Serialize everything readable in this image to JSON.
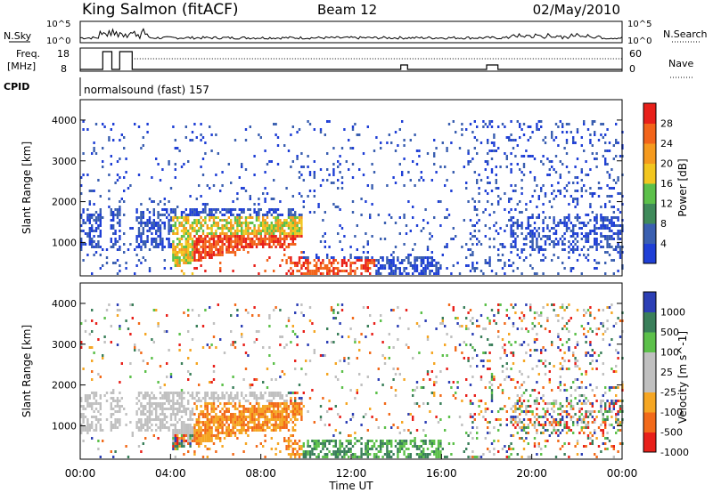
{
  "header": {
    "station": "King Salmon (fitACF)",
    "beam": "Beam 12",
    "date": "02/May/2010"
  },
  "strip_labels": {
    "nsky": "N.Sky",
    "freq_line1": "Freq.",
    "freq_line2": "[MHz]",
    "cpid": "CPID",
    "nsearch": "N.Search",
    "nave": "Nave"
  },
  "cpid_text": "normalsound (fast) 157",
  "colors": {
    "power": [
      "#1f3fd6",
      "#3a5fb0",
      "#3f8a5a",
      "#5cc04a",
      "#f2c61f",
      "#f59a1e",
      "#f2641a",
      "#e8201a"
    ],
    "velocity": [
      "#e8201a",
      "#f26a1a",
      "#f5a623",
      "#c0c0c0",
      "#c0c0c0",
      "#5cc04a",
      "#3a7f5a",
      "#2c3fb5"
    ]
  },
  "chart_data": [
    {
      "type": "line",
      "name": "N.Sky / N.Search",
      "yticks_left": [
        "10^5",
        "10^0"
      ],
      "yticks_right": [
        "10^5",
        "10^0"
      ]
    },
    {
      "type": "line",
      "name": "Freq / Nave",
      "yticks_left": [
        "18",
        "8"
      ],
      "yticks_right": [
        "60",
        "0"
      ],
      "freq_steps": [
        {
          "t": 0.0,
          "f": 8
        },
        {
          "t": 1.0,
          "f": 18
        },
        {
          "t": 1.4,
          "f": 8
        },
        {
          "t": 1.75,
          "f": 18
        },
        {
          "t": 2.3,
          "f": 8
        }
      ]
    },
    {
      "type": "heatmap",
      "ylabel": "Slant Range [km]",
      "yticks": [
        1000,
        2000,
        3000,
        4000
      ],
      "ylim": [
        180,
        4500
      ],
      "xlim": [
        0,
        24
      ],
      "colorbar_label": "Power [dB]",
      "colorbar_ticks": [
        "28",
        "24",
        "20",
        "16",
        "12",
        "8",
        "4"
      ]
    },
    {
      "type": "heatmap",
      "ylabel": "Slant Range [km]",
      "yticks": [
        1000,
        2000,
        3000,
        4000
      ],
      "ylim": [
        180,
        4500
      ],
      "xlim": [
        0,
        24
      ],
      "xlabel": "Time UT",
      "xticks": [
        "00:00",
        "04:00",
        "08:00",
        "12:00",
        "16:00",
        "20:00",
        "00:00"
      ],
      "colorbar_label": "Velocity [m s^-1]",
      "colorbar_ticks": [
        "1000",
        "500",
        "100",
        "25",
        "-25",
        "-100",
        "-500",
        "-1000"
      ]
    }
  ]
}
